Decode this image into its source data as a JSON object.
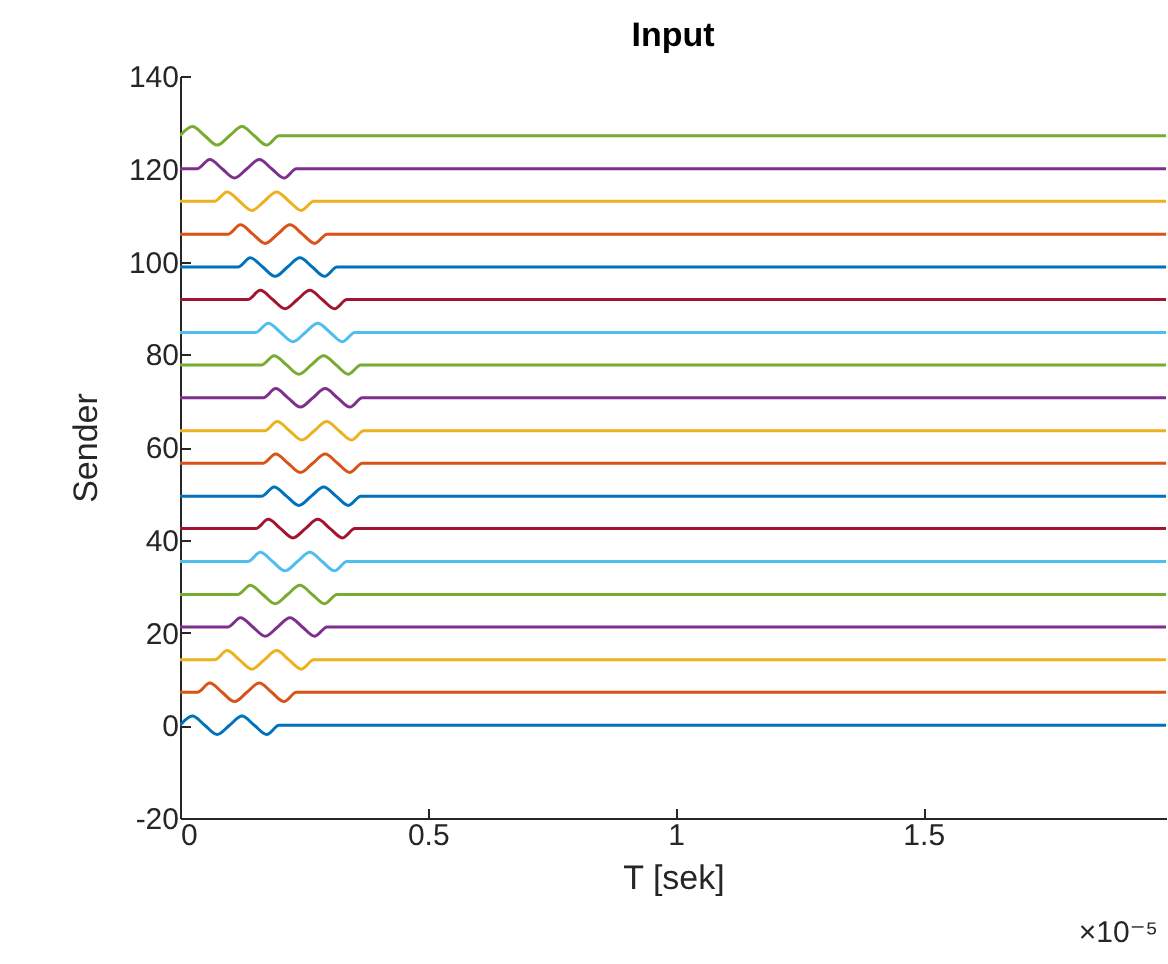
{
  "chart_data": {
    "type": "line",
    "title": "Input",
    "xlabel": "T [sek]",
    "ylabel": "Sender",
    "annotations": [
      "×10⁻⁵"
    ],
    "xlim": [
      0,
      1.99
    ],
    "xticks": [
      0,
      0.5,
      1,
      1.5
    ],
    "ylim": [
      -20,
      140
    ],
    "yticks": [
      -20,
      0,
      20,
      40,
      60,
      80,
      100,
      120,
      140
    ],
    "series": [
      {
        "color": "#0072bd",
        "x": [
          0,
          0.025,
          0.05,
          0.075,
          0.1,
          0.125,
          0.15,
          0.175,
          0.2,
          1.99
        ],
        "values": [
          0,
          2,
          0,
          -2,
          0,
          2,
          0,
          -2,
          0,
          0
        ]
      },
      {
        "color": "#d95319",
        "x": [
          0,
          0.035,
          0.06,
          0.085,
          0.11,
          0.135,
          0.16,
          0.185,
          0.21,
          0.235,
          1.99
        ],
        "values": [
          7.1,
          7.1,
          9.1,
          7.1,
          5.1,
          7.1,
          9.1,
          7.1,
          5.1,
          7.1,
          7.1
        ]
      },
      {
        "color": "#edb120",
        "x": [
          0,
          0.07,
          0.095,
          0.12,
          0.145,
          0.17,
          0.195,
          0.22,
          0.245,
          0.27,
          1.99
        ],
        "values": [
          14.1,
          14.1,
          16.1,
          14.1,
          12.1,
          14.1,
          16.1,
          14.1,
          12.1,
          14.1,
          14.1
        ]
      },
      {
        "color": "#7e2f8e",
        "x": [
          0,
          0.097,
          0.122,
          0.147,
          0.172,
          0.197,
          0.222,
          0.247,
          0.272,
          0.297,
          1.99
        ],
        "values": [
          21.2,
          21.2,
          23.2,
          21.2,
          19.2,
          21.2,
          23.2,
          21.2,
          19.2,
          21.2,
          21.2
        ]
      },
      {
        "color": "#77ac30",
        "x": [
          0,
          0.117,
          0.142,
          0.167,
          0.192,
          0.217,
          0.242,
          0.267,
          0.292,
          0.317,
          1.99
        ],
        "values": [
          28.2,
          28.2,
          30.2,
          28.2,
          26.2,
          28.2,
          30.2,
          28.2,
          26.2,
          28.2,
          28.2
        ]
      },
      {
        "color": "#4dbeee",
        "x": [
          0,
          0.137,
          0.162,
          0.187,
          0.212,
          0.237,
          0.262,
          0.287,
          0.312,
          0.337,
          1.99
        ],
        "values": [
          35.3,
          35.3,
          37.3,
          35.3,
          33.3,
          35.3,
          37.3,
          35.3,
          33.3,
          35.3,
          35.3
        ]
      },
      {
        "color": "#a2142f",
        "x": [
          0,
          0.153,
          0.178,
          0.203,
          0.228,
          0.253,
          0.278,
          0.303,
          0.328,
          0.353,
          1.99
        ],
        "values": [
          42.4,
          42.4,
          44.4,
          42.4,
          40.4,
          42.4,
          44.4,
          42.4,
          40.4,
          42.4,
          42.4
        ]
      },
      {
        "color": "#0072bd",
        "x": [
          0,
          0.165,
          0.19,
          0.215,
          0.24,
          0.265,
          0.29,
          0.315,
          0.34,
          0.365,
          1.99
        ],
        "values": [
          49.4,
          49.4,
          51.4,
          49.4,
          47.4,
          49.4,
          51.4,
          49.4,
          47.4,
          49.4,
          49.4
        ]
      },
      {
        "color": "#d95319",
        "x": [
          0,
          0.168,
          0.193,
          0.218,
          0.243,
          0.268,
          0.293,
          0.318,
          0.343,
          0.368,
          1.99
        ],
        "values": [
          56.5,
          56.5,
          58.5,
          56.5,
          54.5,
          56.5,
          58.5,
          56.5,
          54.5,
          56.5,
          56.5
        ]
      },
      {
        "color": "#edb120",
        "x": [
          0,
          0.171,
          0.196,
          0.221,
          0.246,
          0.271,
          0.296,
          0.321,
          0.346,
          0.371,
          1.99
        ],
        "values": [
          63.5,
          63.5,
          65.5,
          63.5,
          61.5,
          63.5,
          65.5,
          63.5,
          61.5,
          63.5,
          63.5
        ]
      },
      {
        "color": "#7e2f8e",
        "x": [
          0,
          0.168,
          0.193,
          0.218,
          0.243,
          0.268,
          0.293,
          0.318,
          0.343,
          0.368,
          1.99
        ],
        "values": [
          70.6,
          70.6,
          72.6,
          70.6,
          68.6,
          70.6,
          72.6,
          70.6,
          68.6,
          70.6,
          70.6
        ]
      },
      {
        "color": "#77ac30",
        "x": [
          0,
          0.165,
          0.19,
          0.215,
          0.24,
          0.265,
          0.29,
          0.315,
          0.34,
          0.365,
          1.99
        ],
        "values": [
          77.7,
          77.7,
          79.7,
          77.7,
          75.7,
          77.7,
          79.7,
          77.7,
          75.7,
          77.7,
          77.7
        ]
      },
      {
        "color": "#4dbeee",
        "x": [
          0,
          0.153,
          0.178,
          0.203,
          0.228,
          0.253,
          0.278,
          0.303,
          0.328,
          0.353,
          1.99
        ],
        "values": [
          84.7,
          84.7,
          86.7,
          84.7,
          82.7,
          84.7,
          86.7,
          84.7,
          82.7,
          84.7,
          84.7
        ]
      },
      {
        "color": "#a2142f",
        "x": [
          0,
          0.137,
          0.162,
          0.187,
          0.212,
          0.237,
          0.262,
          0.287,
          0.312,
          0.337,
          1.99
        ],
        "values": [
          91.8,
          91.8,
          93.8,
          91.8,
          89.8,
          91.8,
          93.8,
          91.8,
          89.8,
          91.8,
          91.8
        ]
      },
      {
        "color": "#0072bd",
        "x": [
          0,
          0.117,
          0.142,
          0.167,
          0.192,
          0.217,
          0.242,
          0.267,
          0.292,
          0.317,
          1.99
        ],
        "values": [
          98.8,
          98.8,
          100.8,
          98.8,
          96.8,
          98.8,
          100.8,
          98.8,
          96.8,
          98.8,
          98.8
        ]
      },
      {
        "color": "#d95319",
        "x": [
          0,
          0.097,
          0.122,
          0.147,
          0.172,
          0.197,
          0.222,
          0.247,
          0.272,
          0.297,
          1.99
        ],
        "values": [
          105.9,
          105.9,
          107.9,
          105.9,
          103.9,
          105.9,
          107.9,
          105.9,
          103.9,
          105.9,
          105.9
        ]
      },
      {
        "color": "#edb120",
        "x": [
          0,
          0.07,
          0.095,
          0.12,
          0.145,
          0.17,
          0.195,
          0.22,
          0.245,
          0.27,
          1.99
        ],
        "values": [
          113,
          113,
          115,
          113,
          111,
          113,
          115,
          113,
          111,
          113,
          113
        ]
      },
      {
        "color": "#7e2f8e",
        "x": [
          0,
          0.035,
          0.06,
          0.085,
          0.11,
          0.135,
          0.16,
          0.185,
          0.21,
          0.235,
          1.99
        ],
        "values": [
          120,
          120,
          122,
          120,
          118,
          120,
          122,
          120,
          118,
          120,
          120
        ]
      },
      {
        "color": "#77ac30",
        "x": [
          0,
          0.025,
          0.05,
          0.075,
          0.1,
          0.125,
          0.15,
          0.175,
          0.2,
          1.99
        ],
        "values": [
          127.1,
          129.1,
          127.1,
          125.1,
          127.1,
          129.1,
          127.1,
          125.1,
          127.1,
          127.1
        ]
      }
    ]
  }
}
